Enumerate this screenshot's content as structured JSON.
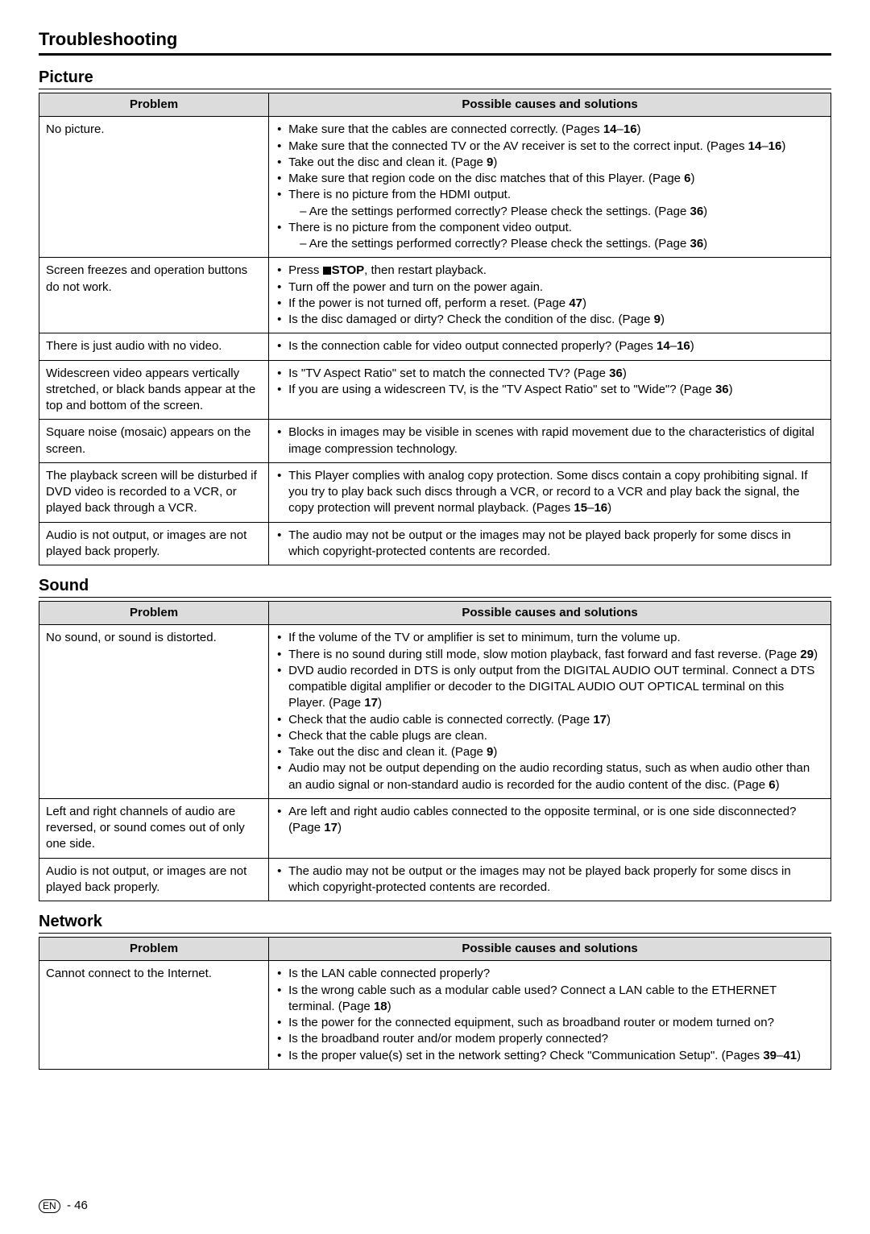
{
  "page_title": "Troubleshooting",
  "footer": {
    "lang": "EN",
    "page": "46"
  },
  "table_headers": {
    "problem": "Problem",
    "solutions": "Possible causes and solutions"
  },
  "sections": [
    {
      "title": "Picture",
      "rows": [
        {
          "problem": "No picture.",
          "items": [
            {
              "text_html": "Make sure that the cables are connected correctly. (Pages <b>14</b>–<b>16</b>)"
            },
            {
              "text_html": "Make sure that the connected TV or the AV receiver is set to the correct input. (Pages <b>14</b>–<b>16</b>)"
            },
            {
              "text_html": "Take out the disc and clean it. (Page <b>9</b>)"
            },
            {
              "text_html": "Make sure that region code on the disc matches that of this Player. (Page <b>6</b>)"
            },
            {
              "text_html": "There is no picture from the HDMI output.",
              "sub_html": "– Are the settings performed correctly? Please check the settings. (Page <b>36</b>)"
            },
            {
              "text_html": "There is no picture from the component video output.",
              "sub_html": "– Are the settings performed correctly? Please check the settings. (Page <b>36</b>)"
            }
          ]
        },
        {
          "problem": "Screen freezes and operation buttons do not work.",
          "items": [
            {
              "text_html": "Press <span class=\"stop-icon\"></span><b>STOP</b>, then restart playback."
            },
            {
              "text_html": "Turn off the power and turn on the power again."
            },
            {
              "text_html": "If the power is not turned off, perform a reset. (Page <b>47</b>)"
            },
            {
              "text_html": "Is the disc damaged or dirty? Check the condition of the disc. (Page <b>9</b>)"
            }
          ]
        },
        {
          "problem": "There is just audio with no video.",
          "items": [
            {
              "text_html": "Is the connection cable for video output connected properly? (Pages <b>14</b>–<b>16</b>)"
            }
          ]
        },
        {
          "problem": "Widescreen video appears vertically stretched, or black bands appear at the top and bottom of the screen.",
          "items": [
            {
              "text_html": "Is \"TV Aspect Ratio\" set to match the connected TV? (Page <b>36</b>)"
            },
            {
              "text_html": "If you are using a widescreen TV, is the \"TV Aspect Ratio\" set to \"Wide\"? (Page <b>36</b>)"
            }
          ]
        },
        {
          "problem": "Square noise (mosaic) appears on the screen.",
          "items": [
            {
              "text_html": "Blocks in images may be visible in scenes with rapid movement due to the characteristics of digital image compression technology."
            }
          ]
        },
        {
          "problem": "The playback screen will be disturbed if DVD video is recorded to a VCR, or played back through a VCR.",
          "items": [
            {
              "text_html": "This Player complies with analog copy protection. Some discs contain a copy prohibiting signal. If you try to play back such discs through a VCR, or record to a VCR and play back the signal, the copy protection will prevent normal playback. (Pages <b>15</b>–<b>16</b>)"
            }
          ]
        },
        {
          "problem": "Audio is not output, or images are not played back properly.",
          "items": [
            {
              "text_html": "The audio may not be output or the images may not be played back properly for some discs in which copyright-protected contents are recorded."
            }
          ]
        }
      ]
    },
    {
      "title": "Sound",
      "rows": [
        {
          "problem": "No sound, or sound is distorted.",
          "items": [
            {
              "text_html": "If the volume of the TV or amplifier is set to minimum, turn the volume up."
            },
            {
              "text_html": "There is no sound during still mode, slow motion playback, fast forward and fast reverse. (Page <b>29</b>)"
            },
            {
              "text_html": "DVD audio recorded in DTS is only output from the DIGITAL AUDIO OUT terminal. Connect a DTS compatible digital amplifier or decoder to the DIGITAL AUDIO OUT OPTICAL terminal on this Player. (Page <b>17</b>)"
            },
            {
              "text_html": "Check that the audio cable is connected correctly. (Page <b>17</b>)"
            },
            {
              "text_html": "Check that the cable plugs are clean."
            },
            {
              "text_html": "Take out the disc and clean it. (Page <b>9</b>)"
            },
            {
              "text_html": "Audio may not be output depending on the audio recording status, such as when audio other than an audio signal or non-standard audio is recorded for the audio content of the disc. (Page <b>6</b>)"
            }
          ]
        },
        {
          "problem": "Left and right channels of audio are reversed, or sound comes out of only one side.",
          "items": [
            {
              "text_html": "Are left and right audio cables connected to the opposite terminal, or is one side disconnected? (Page <b>17</b>)"
            }
          ]
        },
        {
          "problem": "Audio is not output, or images are not played back properly.",
          "items": [
            {
              "text_html": "The audio may not be output or the images may not be played back properly for some discs in which copyright-protected contents are recorded."
            }
          ]
        }
      ]
    },
    {
      "title": "Network",
      "rows": [
        {
          "problem": "Cannot connect to the Internet.",
          "items": [
            {
              "text_html": "Is the LAN cable connected properly?"
            },
            {
              "text_html": "Is the wrong cable such as a modular cable used? Connect a LAN cable to the ETHERNET terminal. (Page <b>18</b>)"
            },
            {
              "text_html": "Is the power for the connected equipment, such as broadband router or modem turned on?"
            },
            {
              "text_html": "Is the broadband router and/or modem properly connected?"
            },
            {
              "text_html": "Is the proper value(s) set in the network setting? Check \"Communication Setup\". (Pages <b>39</b>–<b>41</b>)"
            }
          ]
        }
      ]
    }
  ]
}
